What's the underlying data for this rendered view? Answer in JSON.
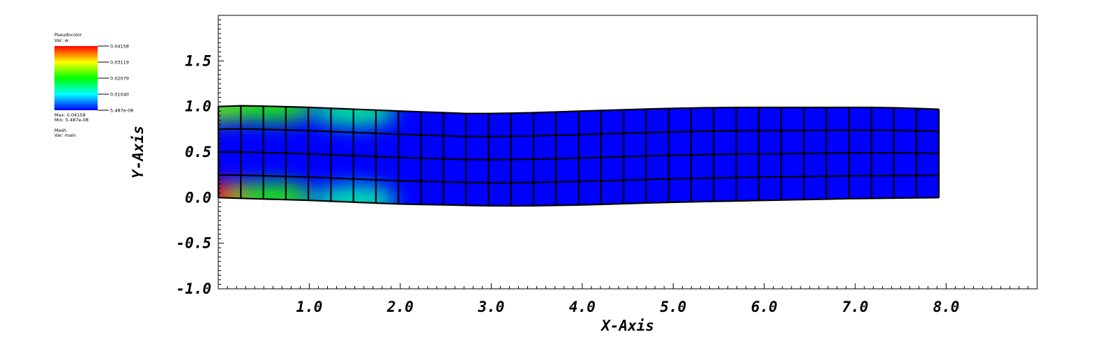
{
  "legend": {
    "plot_title": "Pseudocolor",
    "var_label": "Var: w",
    "colorbar_ticks": [
      "0.04158",
      "0.03119",
      "0.02079",
      "0.01040",
      "5.487e-08"
    ],
    "max_label": "Max: 0.04158",
    "min_label": "Min: 5.487e-08",
    "mesh_title": "Mesh",
    "mesh_var_label": "Var: main",
    "colormap": [
      "#ff0000",
      "#ffff00",
      "#00ff00",
      "#00ffff",
      "#0000ff"
    ]
  },
  "chart_data": {
    "type": "heatmap",
    "description_type": "pseudocolor mesh plot",
    "xlabel": "X-Axis",
    "ylabel": "Y-Axis",
    "xlim": [
      0.0,
      9.0
    ],
    "ylim": [
      -1.0,
      2.0
    ],
    "x_tick_labels": [
      "1.0",
      "2.0",
      "3.0",
      "4.0",
      "5.0",
      "6.0",
      "7.0",
      "8.0"
    ],
    "x_tick_values": [
      1.0,
      2.0,
      3.0,
      4.0,
      5.0,
      6.0,
      7.0,
      8.0
    ],
    "y_tick_labels": [
      "1.5",
      "1.0",
      "0.5",
      "0.0",
      "-0.5",
      "-1.0"
    ],
    "y_tick_values": [
      1.5,
      1.0,
      0.5,
      0.0,
      -0.5,
      -1.0
    ],
    "variable": "w",
    "value_range": [
      5.487e-08,
      0.04158
    ],
    "mesh": {
      "columns": 32,
      "rows": 4,
      "x_range": [
        0.0,
        7.92
      ],
      "bottom_edge": [
        [
          0.0,
          0.0
        ],
        [
          1.0,
          -0.03
        ],
        [
          2.0,
          -0.07
        ],
        [
          3.0,
          -0.09
        ],
        [
          3.4,
          -0.09
        ],
        [
          4.0,
          -0.08
        ],
        [
          5.0,
          -0.05
        ],
        [
          6.0,
          -0.03
        ],
        [
          7.0,
          -0.01
        ],
        [
          7.92,
          0.0
        ]
      ],
      "top_edge": [
        [
          0.0,
          1.0
        ],
        [
          0.3,
          1.01
        ],
        [
          1.0,
          0.99
        ],
        [
          2.0,
          0.95
        ],
        [
          2.8,
          0.92
        ],
        [
          3.4,
          0.93
        ],
        [
          4.0,
          0.95
        ],
        [
          5.0,
          0.98
        ],
        [
          5.6,
          0.99
        ],
        [
          6.5,
          0.99
        ],
        [
          7.3,
          0.99
        ],
        [
          7.92,
          0.97
        ]
      ],
      "hot_spots": [
        {
          "x": 0.0,
          "y": 0.0,
          "w": 0.04158
        },
        {
          "x": 0.0,
          "y": 1.0,
          "w": 0.025
        },
        {
          "x": 0.6,
          "y": 1.0,
          "w": 0.022
        },
        {
          "x": 1.5,
          "y": 0.95,
          "w": 0.015
        },
        {
          "x": 0.6,
          "y": 0.0,
          "w": 0.022
        },
        {
          "x": 1.5,
          "y": -0.03,
          "w": 0.014
        }
      ]
    }
  }
}
